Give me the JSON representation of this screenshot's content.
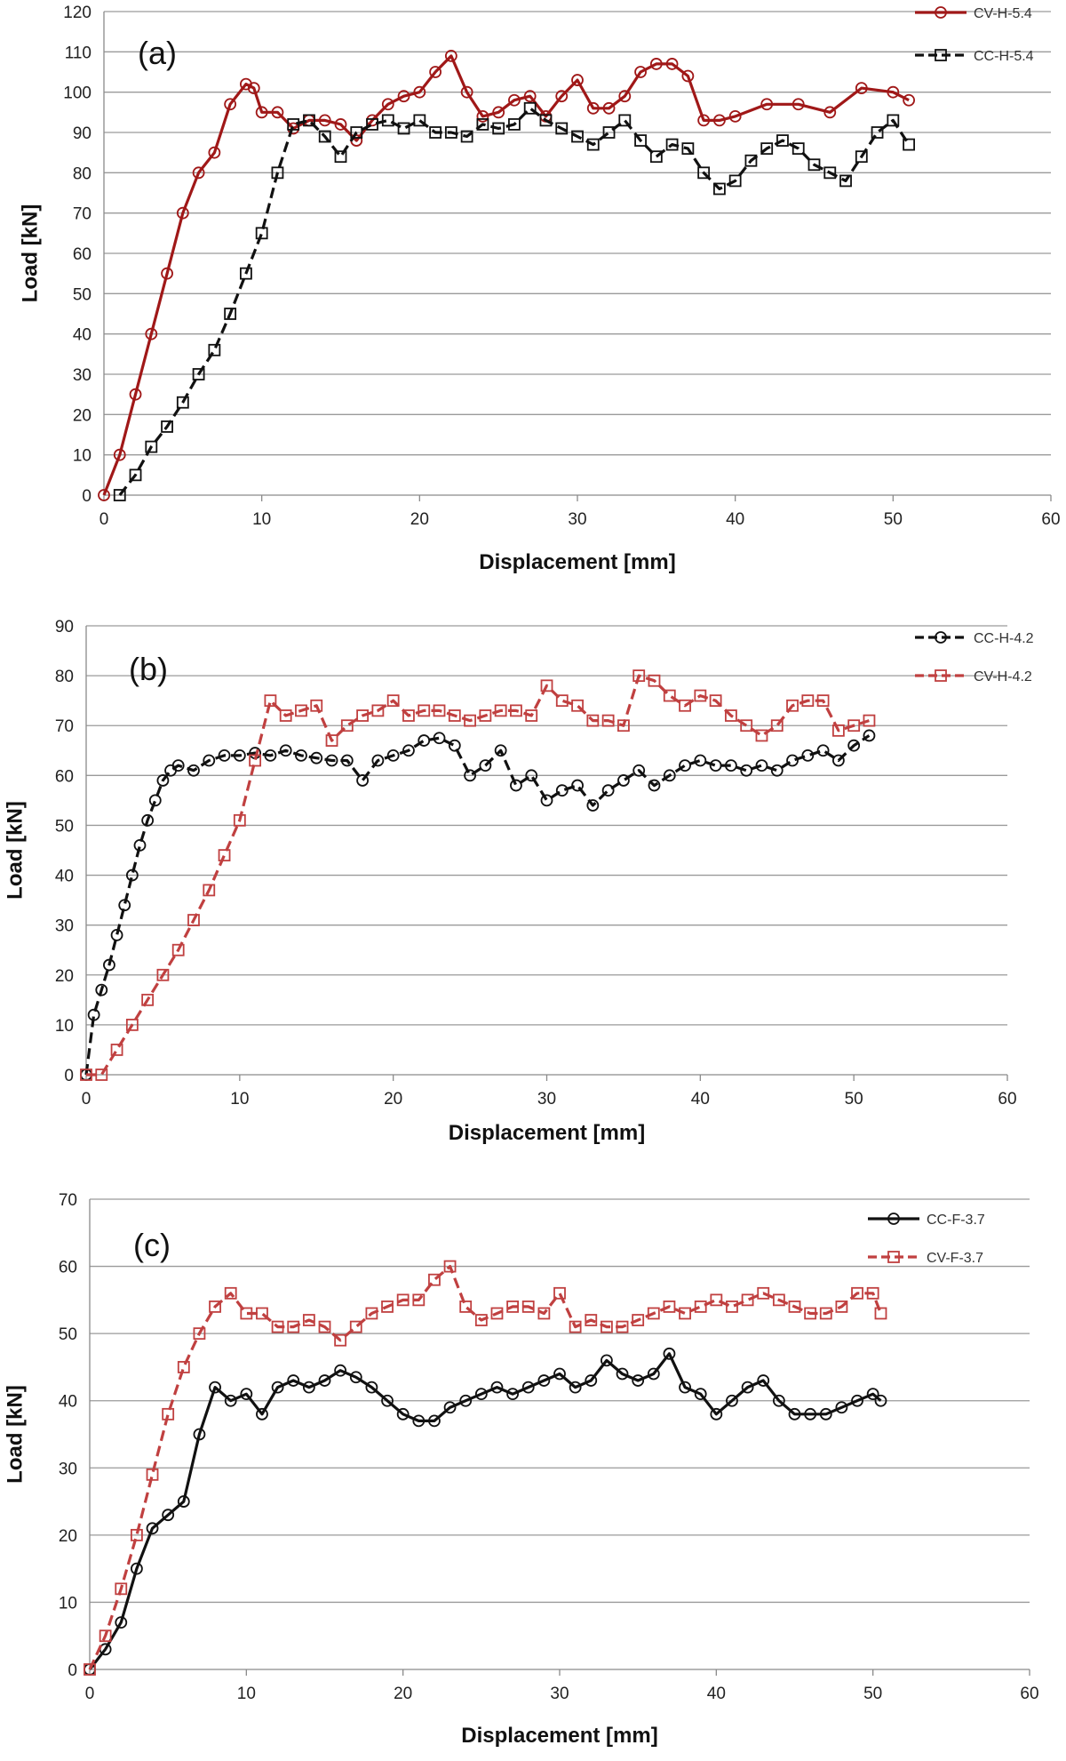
{
  "chart_data": [
    {
      "type": "line",
      "panel_label": "(a)",
      "xlabel": "Displacement [mm]",
      "ylabel": "Load [kN]",
      "xlim": [
        0,
        60
      ],
      "ylim": [
        0,
        120
      ],
      "x_ticks": [
        "0",
        "10",
        "20",
        "30",
        "40",
        "50",
        "60"
      ],
      "y_ticks": [
        "0",
        "10",
        "20",
        "30",
        "40",
        "50",
        "60",
        "70",
        "80",
        "90",
        "100",
        "110",
        "120"
      ],
      "grid": true,
      "legend_position": "top-right",
      "series": [
        {
          "name": "CV-H-5.4",
          "color": "#a01818",
          "marker": "circle",
          "dashed": false,
          "x": [
            0,
            1,
            2,
            3,
            4,
            5,
            6,
            7,
            8,
            9,
            9.5,
            10,
            11,
            12,
            13,
            14,
            15,
            16,
            17,
            18,
            19,
            20,
            21,
            22,
            23,
            24,
            25,
            26,
            27,
            28,
            29,
            30,
            31,
            32,
            33,
            34,
            35,
            36,
            37,
            38,
            39,
            40,
            42,
            44,
            46,
            48,
            50,
            51
          ],
          "y": [
            0,
            10,
            25,
            40,
            55,
            70,
            80,
            85,
            97,
            102,
            101,
            95,
            95,
            91,
            93,
            93,
            92,
            88,
            93,
            97,
            99,
            100,
            105,
            109,
            100,
            94,
            95,
            98,
            99,
            94,
            99,
            103,
            96,
            96,
            99,
            105,
            107,
            107,
            104,
            93,
            93,
            94,
            97,
            97,
            95,
            101,
            100,
            98
          ]
        },
        {
          "name": "CC-H-5.4",
          "color": "#111111",
          "marker": "square",
          "dashed": true,
          "x": [
            1,
            2,
            3,
            4,
            5,
            6,
            7,
            8,
            9,
            10,
            11,
            12,
            13,
            14,
            15,
            16,
            17,
            18,
            19,
            20,
            21,
            22,
            23,
            24,
            25,
            26,
            27,
            28,
            29,
            30,
            31,
            32,
            33,
            34,
            35,
            36,
            37,
            38,
            39,
            40,
            41,
            42,
            43,
            44,
            45,
            46,
            47,
            48,
            49,
            50,
            51
          ],
          "y": [
            0,
            5,
            12,
            17,
            23,
            30,
            36,
            45,
            55,
            65,
            80,
            92,
            93,
            89,
            84,
            90,
            92,
            93,
            91,
            93,
            90,
            90,
            89,
            92,
            91,
            92,
            96,
            93,
            91,
            89,
            87,
            90,
            93,
            88,
            84,
            87,
            86,
            80,
            76,
            78,
            83,
            86,
            88,
            86,
            82,
            80,
            78,
            84,
            90,
            93,
            87
          ]
        }
      ]
    },
    {
      "type": "line",
      "panel_label": "(b)",
      "xlabel": "Displacement [mm]",
      "ylabel": "Load [kN]",
      "xlim": [
        0,
        60
      ],
      "ylim": [
        0,
        90
      ],
      "x_ticks": [
        "0",
        "10",
        "20",
        "30",
        "40",
        "50",
        "60"
      ],
      "y_ticks": [
        "0",
        "10",
        "20",
        "30",
        "40",
        "50",
        "60",
        "70",
        "80",
        "90"
      ],
      "grid": true,
      "legend_position": "top-right",
      "series": [
        {
          "name": "CC-H-4.2",
          "color": "#111111",
          "marker": "circle",
          "dashed": true,
          "x": [
            0,
            0.5,
            1,
            1.5,
            2,
            2.5,
            3,
            3.5,
            4,
            4.5,
            5,
            5.5,
            6,
            7,
            8,
            9,
            10,
            11,
            12,
            13,
            14,
            15,
            16,
            17,
            18,
            19,
            20,
            21,
            22,
            23,
            24,
            25,
            26,
            27,
            28,
            29,
            30,
            31,
            32,
            33,
            34,
            35,
            36,
            37,
            38,
            39,
            40,
            41,
            42,
            43,
            44,
            45,
            46,
            47,
            48,
            49,
            50,
            51
          ],
          "y": [
            0,
            12,
            17,
            22,
            28,
            34,
            40,
            46,
            51,
            55,
            59,
            61,
            62,
            61,
            63,
            64,
            64,
            64.5,
            64,
            65,
            64,
            63.5,
            63,
            63,
            59,
            63,
            64,
            65,
            67,
            67.5,
            66,
            60,
            62,
            65,
            58,
            60,
            55,
            57,
            58,
            54,
            57,
            59,
            61,
            58,
            60,
            62,
            63,
            62,
            62,
            61,
            62,
            61,
            63,
            64,
            65,
            63,
            66,
            68
          ]
        },
        {
          "name": "CV-H-4.2",
          "color": "#c04040",
          "marker": "square",
          "dashed": true,
          "x": [
            0,
            1,
            2,
            3,
            4,
            5,
            6,
            7,
            8,
            9,
            10,
            11,
            12,
            13,
            14,
            15,
            16,
            17,
            18,
            19,
            20,
            21,
            22,
            23,
            24,
            25,
            26,
            27,
            28,
            29,
            30,
            31,
            32,
            33,
            34,
            35,
            36,
            37,
            38,
            39,
            40,
            41,
            42,
            43,
            44,
            45,
            46,
            47,
            48,
            49,
            50,
            51
          ],
          "y": [
            0,
            0,
            5,
            10,
            15,
            20,
            25,
            31,
            37,
            44,
            51,
            63,
            75,
            72,
            73,
            74,
            67,
            70,
            72,
            73,
            75,
            72,
            73,
            73,
            72,
            71,
            72,
            73,
            73,
            72,
            78,
            75,
            74,
            71,
            71,
            70,
            80,
            79,
            76,
            74,
            76,
            75,
            72,
            70,
            68,
            70,
            74,
            75,
            75,
            69,
            70,
            71
          ]
        }
      ]
    },
    {
      "type": "line",
      "panel_label": "(c)",
      "xlabel": "Displacement [mm]",
      "ylabel": "Load [kN]",
      "xlim": [
        0,
        60
      ],
      "ylim": [
        0,
        70
      ],
      "x_ticks": [
        "0",
        "10",
        "20",
        "30",
        "40",
        "50",
        "60"
      ],
      "y_ticks": [
        "0",
        "10",
        "20",
        "30",
        "40",
        "50",
        "60",
        "70"
      ],
      "grid": true,
      "legend_position": "top-right",
      "series": [
        {
          "name": "CC-F-3.7",
          "color": "#111111",
          "marker": "circle",
          "dashed": false,
          "x": [
            0,
            1,
            2,
            3,
            4,
            5,
            6,
            7,
            8,
            9,
            10,
            11,
            12,
            13,
            14,
            15,
            16,
            17,
            18,
            19,
            20,
            21,
            22,
            23,
            24,
            25,
            26,
            27,
            28,
            29,
            30,
            31,
            32,
            33,
            34,
            35,
            36,
            37,
            38,
            39,
            40,
            41,
            42,
            43,
            44,
            45,
            46,
            47,
            48,
            49,
            50,
            50.5
          ],
          "y": [
            0,
            3,
            7,
            15,
            21,
            23,
            25,
            35,
            42,
            40,
            41,
            38,
            42,
            43,
            42,
            43,
            44.5,
            43.5,
            42,
            40,
            38,
            37,
            37,
            39,
            40,
            41,
            42,
            41,
            42,
            43,
            44,
            42,
            43,
            46,
            44,
            43,
            44,
            47,
            42,
            41,
            38,
            40,
            42,
            43,
            40,
            38,
            38,
            38,
            39,
            40,
            41,
            40
          ]
        },
        {
          "name": "CV-F-3.7",
          "color": "#c04040",
          "marker": "square",
          "dashed": true,
          "x": [
            0,
            1,
            2,
            3,
            4,
            5,
            6,
            7,
            8,
            9,
            10,
            11,
            12,
            13,
            14,
            15,
            16,
            17,
            18,
            19,
            20,
            21,
            22,
            23,
            24,
            25,
            26,
            27,
            28,
            29,
            30,
            31,
            32,
            33,
            34,
            35,
            36,
            37,
            38,
            39,
            40,
            41,
            42,
            43,
            44,
            45,
            46,
            47,
            48,
            49,
            50,
            50.5
          ],
          "y": [
            0,
            5,
            12,
            20,
            29,
            38,
            45,
            50,
            54,
            56,
            53,
            53,
            51,
            51,
            52,
            51,
            49,
            51,
            53,
            54,
            55,
            55,
            58,
            60,
            54,
            52,
            53,
            54,
            54,
            53,
            56,
            51,
            52,
            51,
            51,
            52,
            53,
            54,
            53,
            54,
            55,
            54,
            55,
            56,
            55,
            54,
            53,
            53,
            54,
            56,
            56,
            53
          ]
        }
      ]
    }
  ]
}
